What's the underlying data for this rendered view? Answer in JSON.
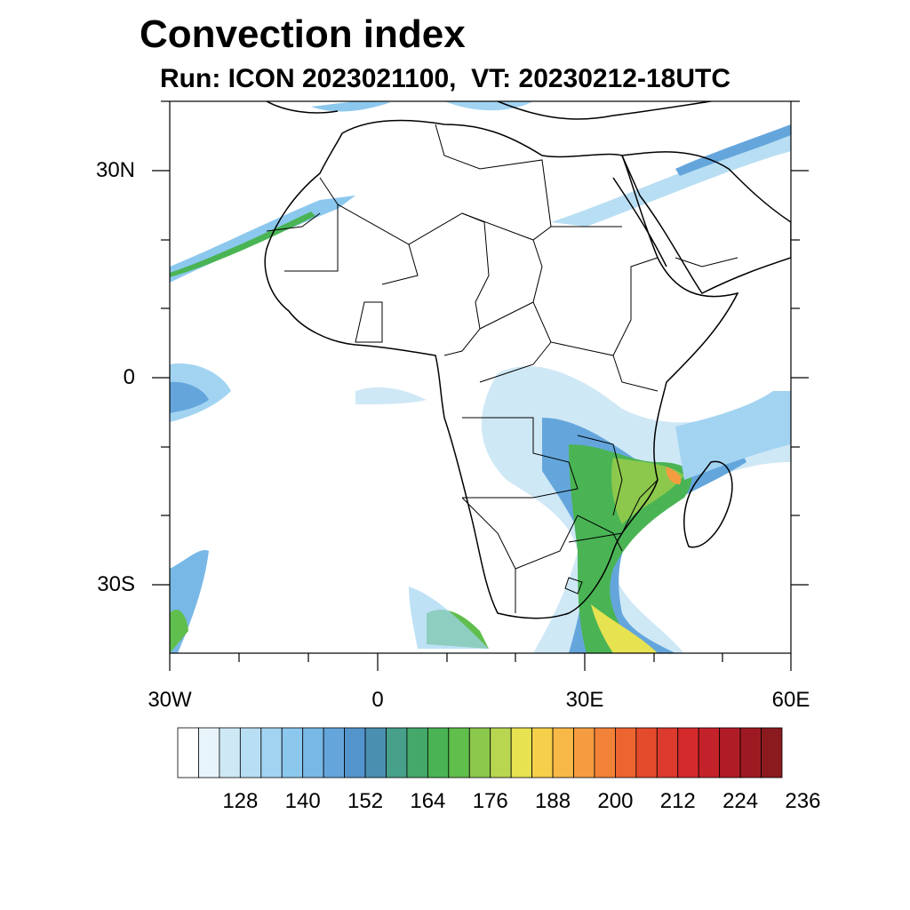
{
  "title": "Convection index",
  "subtitle": "Run: ICON 2023021100,  VT: 20230212-18UTC",
  "axes": {
    "lat_labels": [
      "30N",
      "0",
      "30S"
    ],
    "lon_labels": [
      "30W",
      "0",
      "30E",
      "60E"
    ]
  },
  "colorbar": {
    "labels": [
      "128",
      "140",
      "152",
      "164",
      "176",
      "188",
      "200",
      "212",
      "224",
      "236"
    ],
    "colors": [
      "#ffffff",
      "#e8f4fb",
      "#cfe8f6",
      "#b8def4",
      "#a2d4f2",
      "#8cc8ee",
      "#78b8e6",
      "#64a6dc",
      "#5494cc",
      "#4a8fb0",
      "#46a08a",
      "#44a86a",
      "#4ab454",
      "#60be4c",
      "#8cc84c",
      "#b8d650",
      "#e6e250",
      "#f6d04a",
      "#f7b848",
      "#f69c40",
      "#f28238",
      "#ec6430",
      "#e44a2c",
      "#dc3a2c",
      "#d42a2c",
      "#c4222a",
      "#b01c26",
      "#9e1a22",
      "#8a1a1e"
    ]
  }
}
